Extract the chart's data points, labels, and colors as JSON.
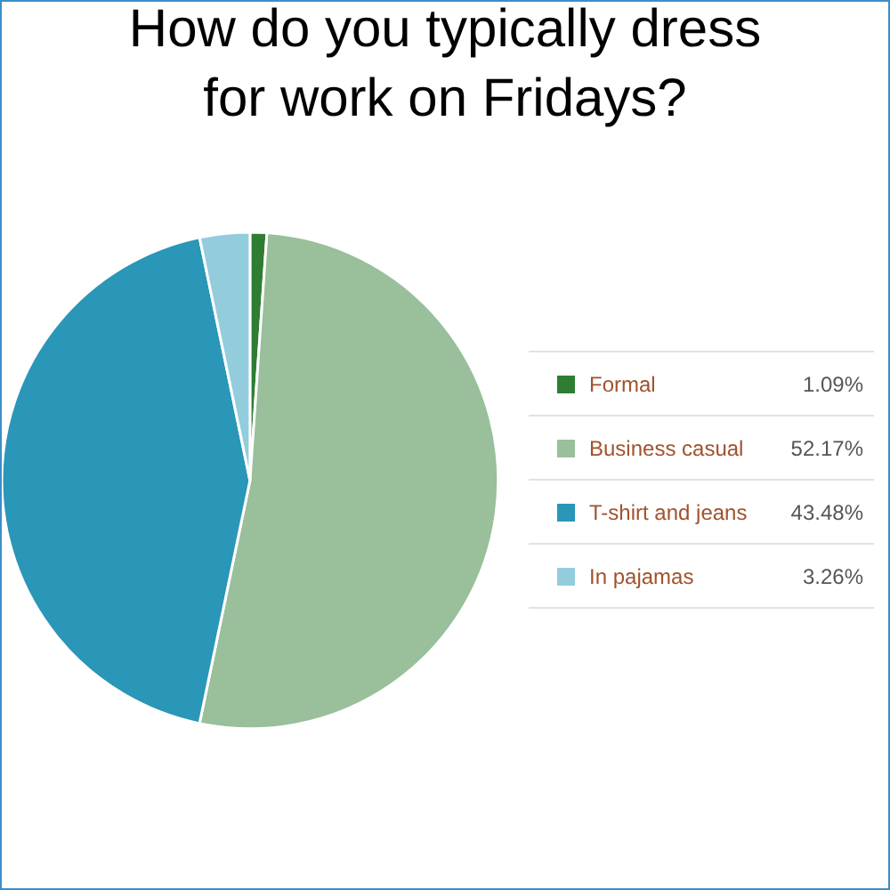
{
  "chart_data": {
    "type": "pie",
    "title": "How do you typically dress\nfor work on Fridays?",
    "categories": [
      "Formal",
      "Business casual",
      "T-shirt and jeans",
      "In pajamas"
    ],
    "values": [
      1.09,
      52.17,
      43.48,
      3.26
    ],
    "colors": [
      "#2e7d32",
      "#99bf9b",
      "#2a96b8",
      "#93cddd"
    ],
    "value_labels": [
      "1.09%",
      "52.17%",
      "43.48%",
      "3.26%"
    ],
    "legend": "right"
  }
}
